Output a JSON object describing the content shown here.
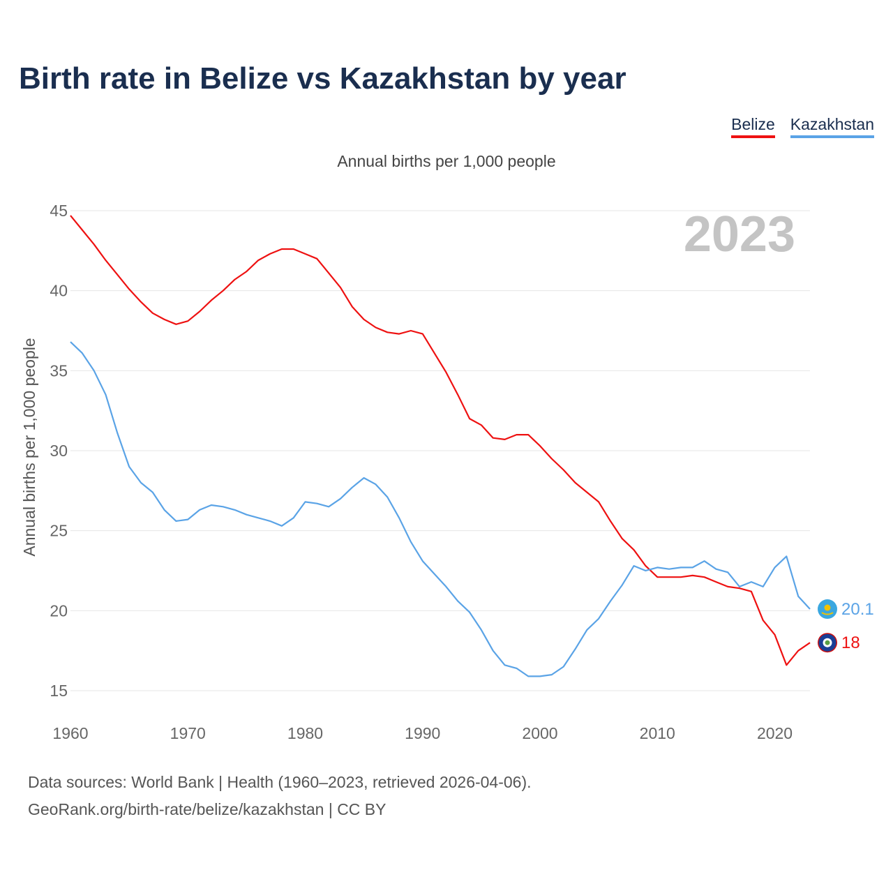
{
  "title": "Birth rate in Belize vs Kazakhstan by year",
  "subtitle": "Annual births per 1,000 people",
  "legend": [
    {
      "label": "Belize",
      "color": "#ee1111"
    },
    {
      "label": "Kazakhstan",
      "color": "#5aa3e6"
    }
  ],
  "year_badge": "2023",
  "footer": {
    "line1": "Data sources: World Bank | Health (1960–2023, retrieved 2026-04-06).",
    "line2": "GeoRank.org/birth-rate/belize/kazakhstan | CC BY"
  },
  "chart_data": {
    "type": "line",
    "title": "Birth rate in Belize vs Kazakhstan by year",
    "xlabel": "",
    "ylabel": "Annual births per 1,000 people",
    "xlim": [
      1960,
      2023
    ],
    "ylim": [
      15,
      45
    ],
    "xticks": [
      1960,
      1970,
      1980,
      1990,
      2000,
      2010,
      2020
    ],
    "yticks": [
      15,
      20,
      25,
      30,
      35,
      40,
      45
    ],
    "grid": true,
    "legend_position": "top-right",
    "series": [
      {
        "name": "Belize",
        "color": "#ee1111",
        "end_label": "18",
        "x": [
          1960,
          1961,
          1962,
          1963,
          1964,
          1965,
          1966,
          1967,
          1968,
          1969,
          1970,
          1971,
          1972,
          1973,
          1974,
          1975,
          1976,
          1977,
          1978,
          1979,
          1980,
          1981,
          1982,
          1983,
          1984,
          1985,
          1986,
          1987,
          1988,
          1989,
          1990,
          1991,
          1992,
          1993,
          1994,
          1995,
          1996,
          1997,
          1998,
          1999,
          2000,
          2001,
          2002,
          2003,
          2004,
          2005,
          2006,
          2007,
          2008,
          2009,
          2010,
          2011,
          2012,
          2013,
          2014,
          2015,
          2016,
          2017,
          2018,
          2019,
          2020,
          2021,
          2022,
          2023
        ],
        "values": [
          44.7,
          43.8,
          42.9,
          41.9,
          41.0,
          40.1,
          39.3,
          38.6,
          38.2,
          37.9,
          38.1,
          38.7,
          39.4,
          40.0,
          40.7,
          41.2,
          41.9,
          42.3,
          42.6,
          42.6,
          42.3,
          42.0,
          41.1,
          40.2,
          39.0,
          38.2,
          37.7,
          37.4,
          37.3,
          37.5,
          37.3,
          36.1,
          34.9,
          33.5,
          32.0,
          31.6,
          30.8,
          30.7,
          31.0,
          31.0,
          30.3,
          29.5,
          28.8,
          28.0,
          27.4,
          26.8,
          25.6,
          24.5,
          23.8,
          22.8,
          22.1,
          22.1,
          22.1,
          22.2,
          22.1,
          21.8,
          21.5,
          21.4,
          21.2,
          19.4,
          18.5,
          16.6,
          17.5,
          18.0
        ]
      },
      {
        "name": "Kazakhstan",
        "color": "#5aa3e6",
        "end_label": "20.1",
        "x": [
          1960,
          1961,
          1962,
          1963,
          1964,
          1965,
          1966,
          1967,
          1968,
          1969,
          1970,
          1971,
          1972,
          1973,
          1974,
          1975,
          1976,
          1977,
          1978,
          1979,
          1980,
          1981,
          1982,
          1983,
          1984,
          1985,
          1986,
          1987,
          1988,
          1989,
          1990,
          1991,
          1992,
          1993,
          1994,
          1995,
          1996,
          1997,
          1998,
          1999,
          2000,
          2001,
          2002,
          2003,
          2004,
          2005,
          2006,
          2007,
          2008,
          2009,
          2010,
          2011,
          2012,
          2013,
          2014,
          2015,
          2016,
          2017,
          2018,
          2019,
          2020,
          2021,
          2022,
          2023
        ],
        "values": [
          36.8,
          36.1,
          35.0,
          33.5,
          31.1,
          29.0,
          28.0,
          27.4,
          26.3,
          25.6,
          25.7,
          26.3,
          26.6,
          26.5,
          26.3,
          26.0,
          25.8,
          25.6,
          25.3,
          25.8,
          26.8,
          26.7,
          26.5,
          27.0,
          27.7,
          28.3,
          27.9,
          27.1,
          25.8,
          24.3,
          23.1,
          22.3,
          21.5,
          20.6,
          19.9,
          18.8,
          17.5,
          16.6,
          16.4,
          15.9,
          15.9,
          16.0,
          16.5,
          17.6,
          18.8,
          19.5,
          20.6,
          21.6,
          22.8,
          22.5,
          22.7,
          22.6,
          22.7,
          22.7,
          23.1,
          22.6,
          22.4,
          21.5,
          21.8,
          21.5,
          22.7,
          23.4,
          20.9,
          20.1
        ]
      }
    ]
  }
}
